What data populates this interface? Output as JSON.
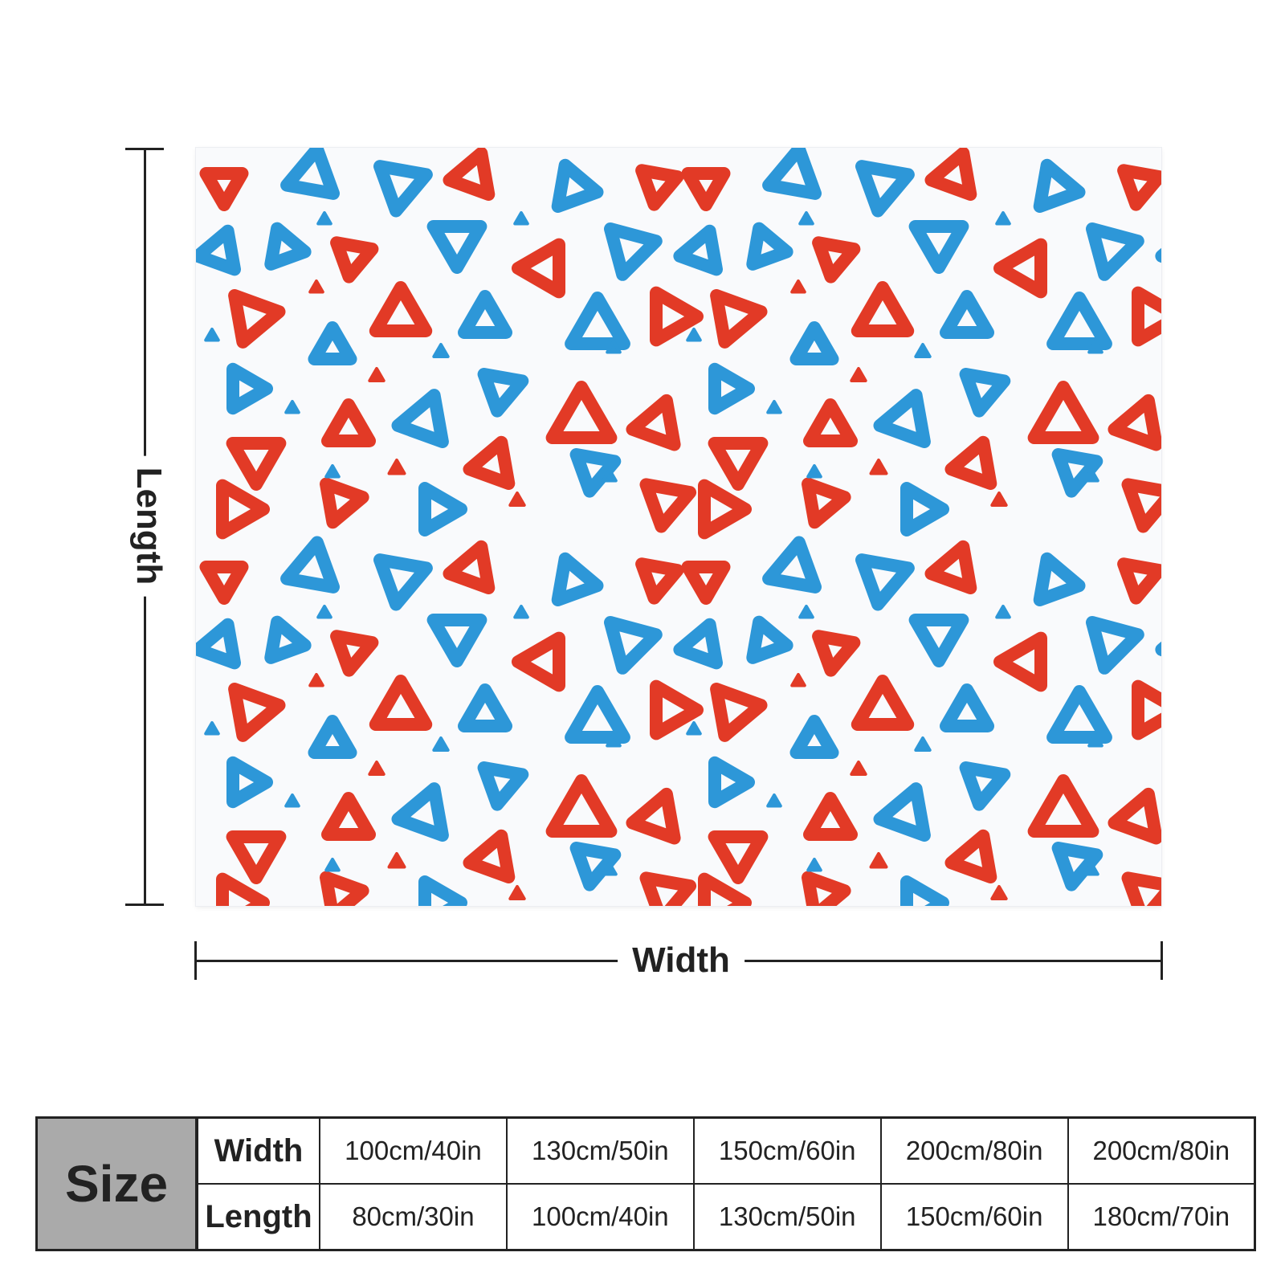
{
  "diagram": {
    "length_label": "Length",
    "width_label": "Width"
  },
  "product": {
    "pattern_colors": {
      "red": "#e23a26",
      "blue": "#2d97d8",
      "background": "#ffffff"
    }
  },
  "size_table": {
    "header": "Size",
    "rows": [
      {
        "label": "Width",
        "values": [
          "100cm/40in",
          "130cm/50in",
          "150cm/60in",
          "200cm/80in",
          "200cm/80in"
        ]
      },
      {
        "label": "Length",
        "values": [
          "80cm/30in",
          "100cm/40in",
          "130cm/50in",
          "150cm/60in",
          "180cm/70in"
        ]
      }
    ]
  }
}
